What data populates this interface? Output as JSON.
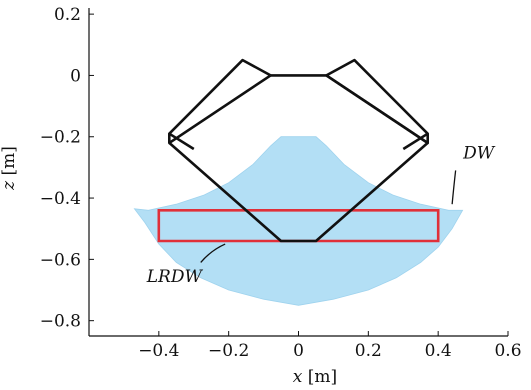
{
  "chart_data": {
    "type": "area",
    "xlabel": "x [m]",
    "ylabel": "z [m]",
    "xlim": [
      -0.6,
      0.6
    ],
    "ylim": [
      -0.85,
      0.22
    ],
    "grid": false,
    "x_ticks": [
      -0.4,
      -0.2,
      0,
      0.2,
      0.4,
      0.6
    ],
    "x_tick_labels": [
      "−0.4",
      "−0.2",
      "0",
      "0.2",
      "0.4",
      "0.6"
    ],
    "y_ticks": [
      0.2,
      0,
      -0.2,
      -0.4,
      -0.6,
      -0.8
    ],
    "y_tick_labels": [
      "0.2",
      "0",
      "−0.2",
      "−0.4",
      "−0.6",
      "−0.8"
    ],
    "series": [
      {
        "name": "DW",
        "color": "#b3dff5",
        "points": [
          [
            -0.05,
            -0.2
          ],
          [
            -0.08,
            -0.23
          ],
          [
            -0.13,
            -0.29
          ],
          [
            -0.2,
            -0.35
          ],
          [
            -0.27,
            -0.39
          ],
          [
            -0.35,
            -0.42
          ],
          [
            -0.43,
            -0.44
          ],
          [
            -0.47,
            -0.435
          ],
          [
            -0.44,
            -0.48
          ],
          [
            -0.4,
            -0.55
          ],
          [
            -0.35,
            -0.61
          ],
          [
            -0.28,
            -0.66
          ],
          [
            -0.2,
            -0.7
          ],
          [
            -0.1,
            -0.73
          ],
          [
            0,
            -0.75
          ],
          [
            0.1,
            -0.73
          ],
          [
            0.2,
            -0.7
          ],
          [
            0.28,
            -0.66
          ],
          [
            0.35,
            -0.61
          ],
          [
            0.4,
            -0.56
          ],
          [
            0.44,
            -0.5
          ],
          [
            0.47,
            -0.44
          ],
          [
            0.43,
            -0.44
          ],
          [
            0.35,
            -0.42
          ],
          [
            0.27,
            -0.39
          ],
          [
            0.2,
            -0.35
          ],
          [
            0.13,
            -0.29
          ],
          [
            0.08,
            -0.23
          ],
          [
            0.05,
            -0.2
          ]
        ]
      },
      {
        "name": "LRDW",
        "color": "#e03039",
        "points": [
          [
            -0.4,
            -0.44
          ],
          [
            0.4,
            -0.44
          ],
          [
            0.4,
            -0.54
          ],
          [
            -0.4,
            -0.54
          ]
        ]
      },
      {
        "name": "",
        "color": "#111111",
        "points": [
          [
            -0.08,
            0.0
          ],
          [
            0.08,
            0.0
          ],
          [
            0.37,
            -0.22
          ],
          [
            0.05,
            -0.54
          ],
          [
            -0.05,
            -0.54
          ],
          [
            -0.37,
            -0.22
          ]
        ]
      },
      {
        "name": "",
        "color": "#111111",
        "points": [
          [
            -0.08,
            0.0
          ],
          [
            -0.37,
            -0.22
          ],
          [
            -0.37,
            -0.19
          ],
          [
            -0.16,
            0.05
          ],
          [
            -0.08,
            0.0
          ]
        ]
      },
      {
        "name": "",
        "color": "#111111",
        "points": [
          [
            0.08,
            0.0
          ],
          [
            0.37,
            -0.22
          ],
          [
            0.37,
            -0.19
          ],
          [
            0.16,
            0.05
          ],
          [
            0.08,
            0.0
          ]
        ]
      },
      {
        "name": "",
        "color": "#111111",
        "points": [
          [
            -0.37,
            -0.19
          ],
          [
            -0.3,
            -0.24
          ]
        ]
      },
      {
        "name": "",
        "color": "#111111",
        "points": [
          [
            0.37,
            -0.19
          ],
          [
            0.3,
            -0.24
          ]
        ]
      }
    ],
    "annotations": [
      {
        "text": "DW",
        "x": 0.5,
        "y": -0.28
      },
      {
        "text": "LRDW",
        "x": -0.32,
        "y": -0.66
      }
    ]
  }
}
